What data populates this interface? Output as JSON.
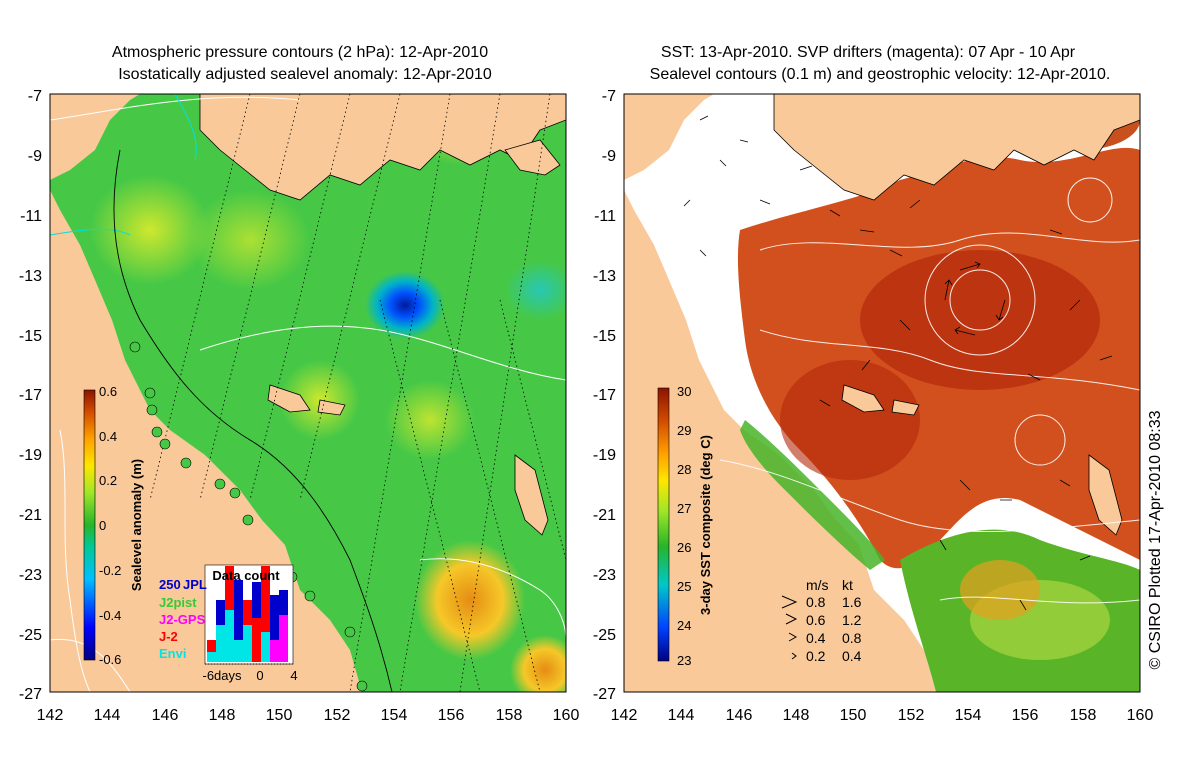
{
  "left_panel": {
    "title_line1": "Atmospheric pressure contours (2 hPa): 12-Apr-2010",
    "title_line2": "Isostatically adjusted sealevel anomaly: 12-Apr-2010",
    "colorbar_label": "Sealevel anomaly (m)",
    "colorbar_ticks": [
      "0.6",
      "0.4",
      "0.2",
      "0",
      "-0.2",
      "-0.4",
      "-0.6"
    ],
    "data_count_title": "Data count",
    "legend": [
      {
        "label": "250",
        "color": "#0000cc"
      },
      {
        "label": "JPL",
        "color": "#0000cc"
      },
      {
        "label": "J2pist",
        "color": "#33cc33"
      },
      {
        "label": "J2-GPS",
        "color": "#ff00ff"
      },
      {
        "label": "J-2",
        "color": "#ff0000"
      },
      {
        "label": "Envi",
        "color": "#00e5e5"
      }
    ],
    "histogram_axis": [
      "-6days",
      "0",
      "4"
    ]
  },
  "right_panel": {
    "title_line1": "SST: 13-Apr-2010. SVP drifters (magenta): 07 Apr - 10 Apr",
    "title_line2": "Sealevel contours (0.1 m) and geostrophic velocity: 12-Apr-2010.",
    "colorbar_label": "3-day SST composite (deg C)",
    "colorbar_ticks": [
      "30",
      "29",
      "28",
      "27",
      "26",
      "25",
      "24",
      "23"
    ],
    "velocity_legend": {
      "header_ms": "m/s",
      "header_kt": "kt",
      "rows": [
        {
          "ms": "0.8",
          "kt": "1.6"
        },
        {
          "ms": "0.6",
          "kt": "1.2"
        },
        {
          "ms": "0.4",
          "kt": "0.8"
        },
        {
          "ms": "0.2",
          "kt": "0.4"
        }
      ]
    }
  },
  "axes": {
    "lat_ticks": [
      "-7",
      "-9",
      "-11",
      "-13",
      "-15",
      "-17",
      "-19",
      "-21",
      "-23",
      "-25",
      "-27"
    ],
    "lon_ticks": [
      "142",
      "144",
      "146",
      "148",
      "150",
      "152",
      "154",
      "156",
      "158",
      "160"
    ]
  },
  "credit": "© CSIRO Plotted 17-Apr-2010 08:33",
  "colors": {
    "land": "#f9c99a",
    "sea_green": "#3cc83c",
    "sst_red": "#c83c14"
  }
}
